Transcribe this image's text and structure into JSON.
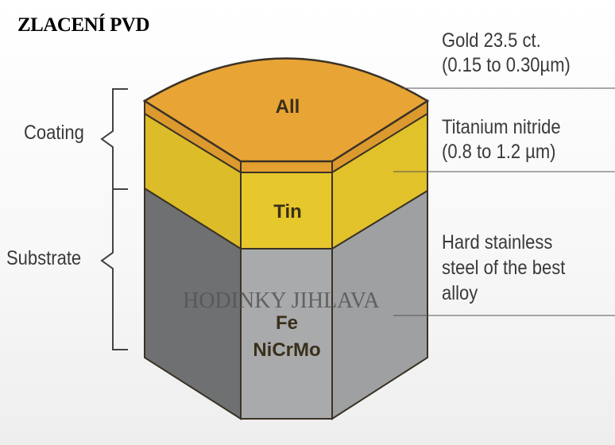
{
  "title": "ZLACENÍ PVD",
  "watermark": "HODINKY JIHLAVA",
  "groups": {
    "coating": "Coating",
    "substrate": "Substrate"
  },
  "layers": {
    "gold": {
      "code": "All",
      "label_line1": "Gold 23.5 ct.",
      "label_line2": "(0.15 to 0.30µm)",
      "color": "#e8a032"
    },
    "titanium": {
      "code": "Tin",
      "label_line1": "Titanium nitride",
      "label_line2": "(0.8 to 1.2 µm)",
      "color": "#e5c52c"
    },
    "steel": {
      "code_line1": "Fe",
      "code_line2": "NiCrMo",
      "label_line1": "Hard stainless",
      "label_line2": "steel of the best",
      "label_line3": "alloy",
      "color": "#a8a9ab"
    }
  }
}
